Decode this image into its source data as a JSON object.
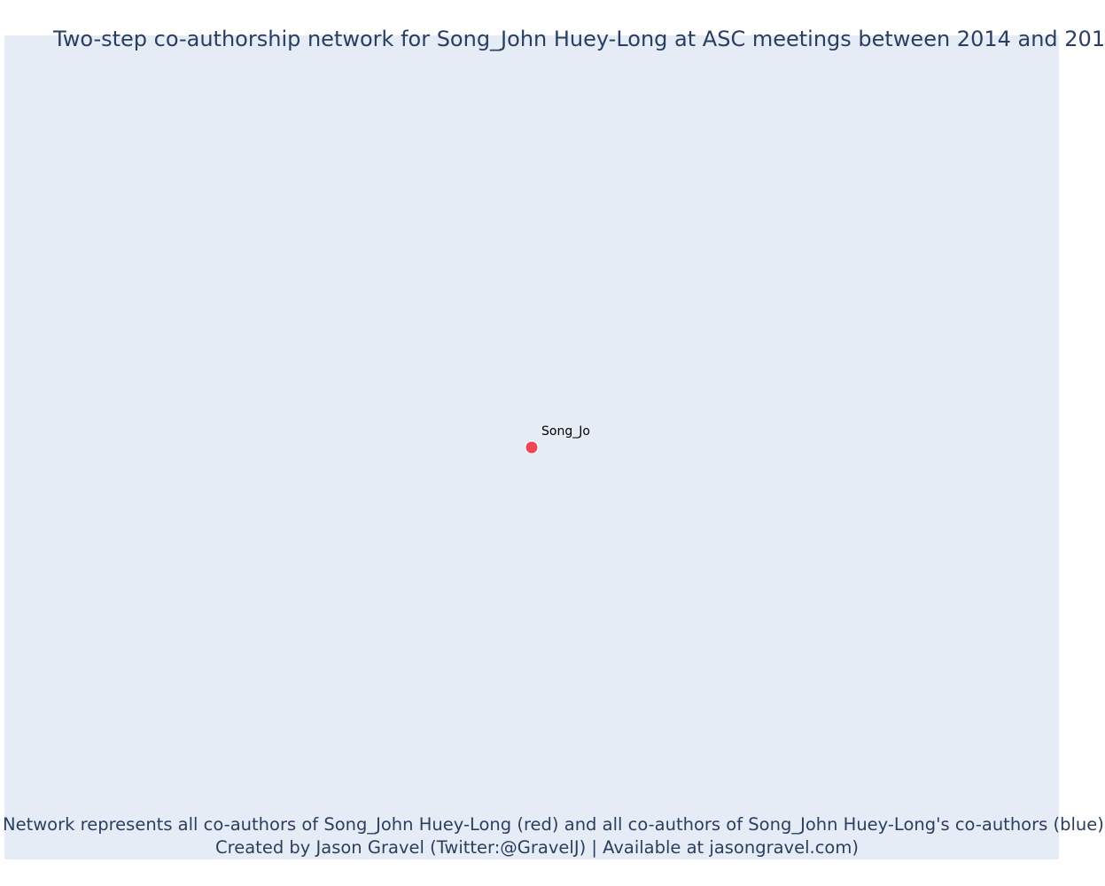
{
  "chart_data": {
    "type": "scatter",
    "title": "Two-step co-authorship network for Song_John Huey-Long at ASC meetings between 2014 and 201",
    "caption_line1": "Network represents all co-authors of Song_John Huey-Long (red) and all co-authors of Song_John Huey-Long's co-authors (blue)",
    "caption_line2": "Created by Jason Gravel (Twitter:@GravelJ) | Available at jasongravel.com)",
    "xlim": [
      -1,
      1
    ],
    "ylim": [
      -1,
      1
    ],
    "grid": false,
    "nodes": [
      {
        "label": "Song_Jo",
        "x": 0,
        "y": 0,
        "color": "#ef4451"
      }
    ],
    "edges": []
  },
  "colors": {
    "plot_background": "#e5ecf6",
    "text": "#2a3f5f",
    "focal_node": "#ef4451"
  }
}
